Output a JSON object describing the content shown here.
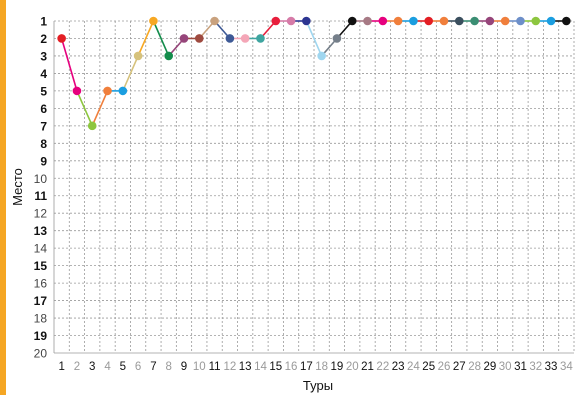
{
  "accent_color": "#f5a623",
  "chart_data": {
    "type": "line",
    "title": "",
    "xlabel": "Туры",
    "ylabel": "Место",
    "x_ticks": [
      "1",
      "2",
      "3",
      "4",
      "5",
      "6",
      "7",
      "8",
      "9",
      "10",
      "11",
      "12",
      "13",
      "14",
      "15",
      "16",
      "17",
      "18",
      "19",
      "20",
      "21",
      "22",
      "23",
      "24",
      "25",
      "26",
      "27",
      "28",
      "29",
      "30",
      "31",
      "32",
      "33",
      "34"
    ],
    "y_ticks": [
      "1",
      "2",
      "3",
      "4",
      "5",
      "6",
      "7",
      "8",
      "9",
      "10",
      "11",
      "12",
      "13",
      "14",
      "15",
      "16",
      "17",
      "18",
      "19",
      "20"
    ],
    "ylim": [
      1,
      20
    ],
    "y_inverted": true,
    "grid": true,
    "series": [
      {
        "x": [
          1,
          2,
          3,
          4,
          5,
          6,
          7,
          8,
          9,
          10,
          11,
          12,
          13,
          14,
          15,
          16,
          17,
          18,
          19,
          20,
          21,
          22,
          23,
          24,
          25,
          26,
          27,
          28,
          29,
          30,
          31,
          32,
          33,
          34
        ],
        "values": [
          2,
          5,
          7,
          5,
          5,
          3,
          1,
          3,
          2,
          2,
          1,
          2,
          2,
          2,
          1,
          1,
          1,
          3,
          2,
          1,
          1,
          1,
          1,
          1,
          1,
          1,
          1,
          1,
          1,
          1,
          1,
          1,
          1,
          1
        ],
        "point_colors": [
          "#e31e24",
          "#e6007e",
          "#8dc63f",
          "#f07f3c",
          "#1b9ee0",
          "#d6c27c",
          "#f7a823",
          "#138c4b",
          "#96457a",
          "#9e4a3f",
          "#c9a27e",
          "#3e5a96",
          "#f4a6b7",
          "#3fa5a0",
          "#e81e3c",
          "#d67ba8",
          "#2c3591",
          "#9fd6ef",
          "#757f8a",
          "#111111",
          "#a77a85",
          "#e6007e",
          "#f07f3c",
          "#1b9ee0",
          "#e31e24",
          "#f07f3c",
          "#3b4f5e",
          "#3b8e73",
          "#96457a",
          "#f07f3c",
          "#6d8fc9",
          "#8dc63f",
          "#1b9ee0",
          "#111111"
        ]
      }
    ]
  }
}
